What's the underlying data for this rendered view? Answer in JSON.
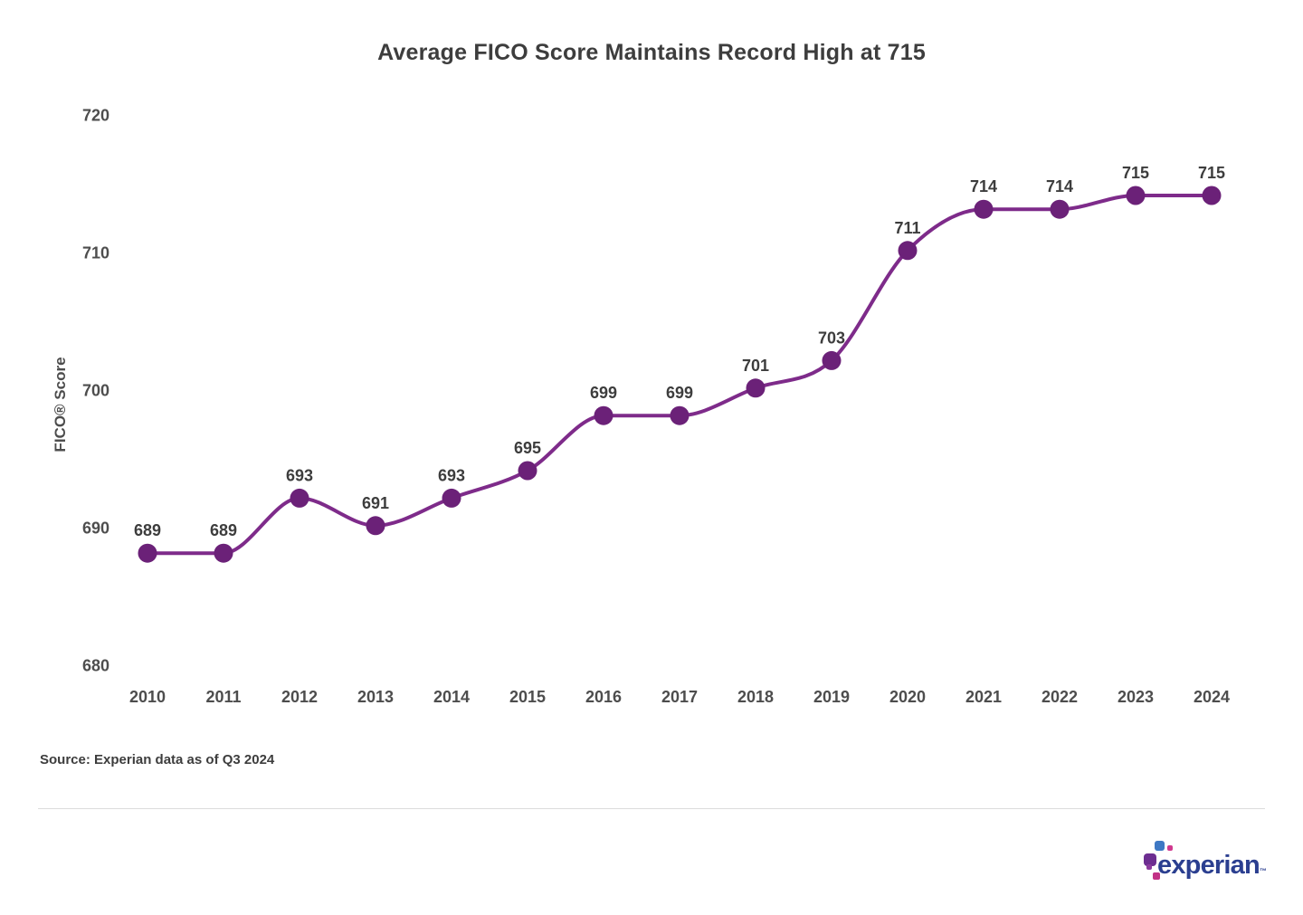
{
  "page": {
    "source_note": "Source: Experian data as of Q3 2024"
  },
  "chart_data": {
    "type": "line",
    "title": "Average FICO Score Maintains Record High at 715",
    "categories": [
      "2010",
      "2011",
      "2012",
      "2013",
      "2014",
      "2015",
      "2016",
      "2017",
      "2018",
      "2019",
      "2020",
      "2021",
      "2022",
      "2023",
      "2024"
    ],
    "values": [
      689,
      689,
      693,
      691,
      693,
      695,
      699,
      699,
      701,
      703,
      711,
      714,
      714,
      715,
      715
    ],
    "xlabel": "",
    "ylabel": "FICO® Score",
    "yticks": [
      680,
      690,
      700,
      710,
      720
    ],
    "ylim": [
      676,
      724
    ],
    "grid": false,
    "legend": "none",
    "data_labels": true,
    "colors": {
      "line": "#7E2B8A",
      "marker": "#6B2178",
      "title_text": "#3D3D3D",
      "data_label_text": "#3D3D3D",
      "axis_text": "#4D4D4D"
    }
  },
  "footer": {
    "logo": {
      "wordmark": "experian",
      "trademark": "™",
      "wordmark_color": "#2B3F90",
      "squares": [
        {
          "name": "blue-square",
          "color": "#3E78C4"
        },
        {
          "name": "pink-square-top",
          "color": "#D0388E"
        },
        {
          "name": "purple-square-large",
          "color": "#6D2E91"
        },
        {
          "name": "purple-square-small",
          "color": "#8B3A9E"
        },
        {
          "name": "magenta-square-bottom",
          "color": "#C23286"
        }
      ]
    }
  }
}
